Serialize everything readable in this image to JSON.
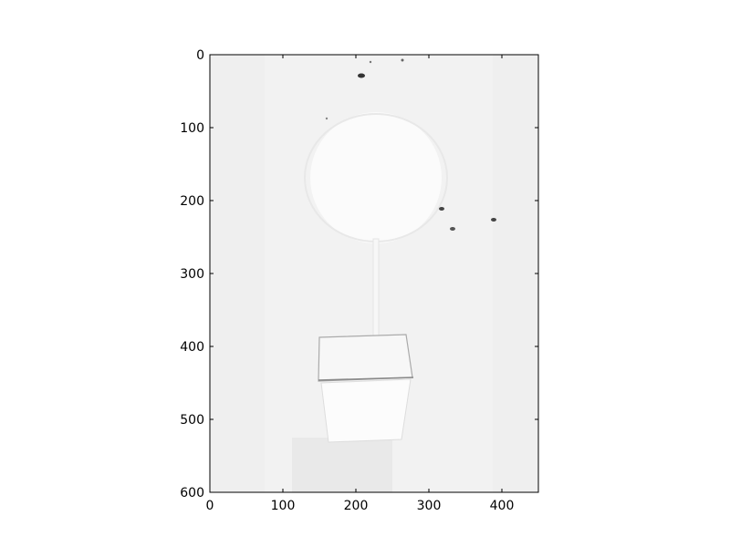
{
  "chart_data": {
    "type": "heatmap",
    "colormap": "grayscale",
    "title": "",
    "xlabel": "",
    "ylabel": "",
    "xlim": [
      0,
      450
    ],
    "ylim": [
      600,
      0
    ],
    "y_axis_inverted": true,
    "x_ticks": [
      0,
      100,
      200,
      300,
      400
    ],
    "y_ticks": [
      0,
      100,
      200,
      300,
      400,
      500,
      600
    ],
    "x_tick_labels": [
      "0",
      "100",
      "200",
      "300",
      "400"
    ],
    "y_tick_labels": [
      "0",
      "100",
      "200",
      "300",
      "400",
      "500",
      "600"
    ],
    "grid": false,
    "legend": "none",
    "image_content": "faint grayscale photo of a potted topiary tree",
    "colors": {
      "background": "#f2f2f2",
      "frame": "#000000",
      "ink": "#333333"
    }
  }
}
